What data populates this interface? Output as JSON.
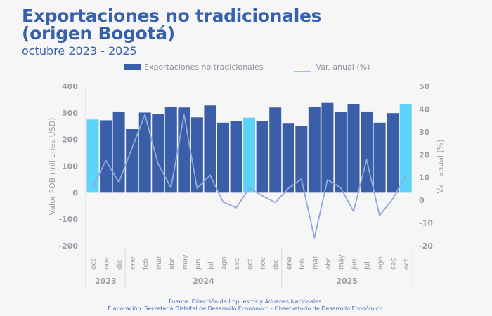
{
  "header": {
    "title_line1": "Exportaciones no tradicionales",
    "title_line2": "(origen Bogotá)",
    "subtitle": "octubre 2023 - 2025"
  },
  "footer": {
    "source": "Fuente: Dirección de Impuestos y Aduanas Nacionales.",
    "elaboration": "Elaboración: Secretaría Distrital de Desarrollo Económico - Observatorio de Desarrollo Económico."
  },
  "colors": {
    "title": "#3861ad",
    "bar": "#3a5fa8",
    "bar_highlight": "#5cd3f7",
    "line": "#8fa9dc",
    "axis_text": "#9a9ea6"
  },
  "chart_data": {
    "type": "bar",
    "title": "Exportaciones no tradicionales (origen Bogotá)",
    "subtitle": "octubre 2023 - 2025",
    "categories": [
      "oct",
      "nov",
      "dic",
      "ene",
      "feb",
      "mar",
      "abr",
      "may",
      "jun",
      "jul",
      "ago",
      "sep",
      "oct",
      "nov",
      "dic",
      "ene",
      "feb",
      "mar",
      "abr",
      "may",
      "jun",
      "jul",
      "ago",
      "sep",
      "oct"
    ],
    "years": [
      {
        "label": "2023",
        "start": 0,
        "end": 2
      },
      {
        "label": "2024",
        "start": 3,
        "end": 14
      },
      {
        "label": "2025",
        "start": 15,
        "end": 24
      }
    ],
    "highlighted": [
      0,
      12,
      24
    ],
    "series": [
      {
        "name": "Exportaciones no tradicionales",
        "type": "bar",
        "axis": "left",
        "values": [
          275,
          272,
          305,
          239,
          301,
          295,
          322,
          320,
          283,
          328,
          263,
          270,
          282,
          270,
          320,
          262,
          252,
          322,
          340,
          304,
          334,
          305,
          263,
          299,
          334
        ]
      },
      {
        "name": "Var. anual (%)",
        "type": "line",
        "axis": "right",
        "values": [
          5.5,
          17.5,
          7.9,
          22.8,
          37.6,
          16.1,
          5.5,
          37.6,
          5.2,
          11.0,
          -0.8,
          -3.3,
          5.3,
          2.0,
          -1.0,
          5.2,
          9.3,
          -16.5,
          9.0,
          5.6,
          -4.9,
          17.8,
          -6.7,
          0.5,
          10.8
        ]
      }
    ],
    "ylabel": "Valor FOB (millones USD)",
    "ylim": [
      -200,
      400
    ],
    "yticks": [
      400,
      300,
      200,
      100,
      0,
      -100,
      -200
    ],
    "y2label": "Var. anual (%)",
    "y2lim": [
      -20,
      50
    ],
    "y2ticks": [
      50,
      40,
      30,
      20,
      10,
      0,
      -10,
      -20
    ],
    "legend": [
      "Exportaciones no tradicionales",
      "Var. anual (%)"
    ],
    "legend_position": "top",
    "grid": false
  }
}
